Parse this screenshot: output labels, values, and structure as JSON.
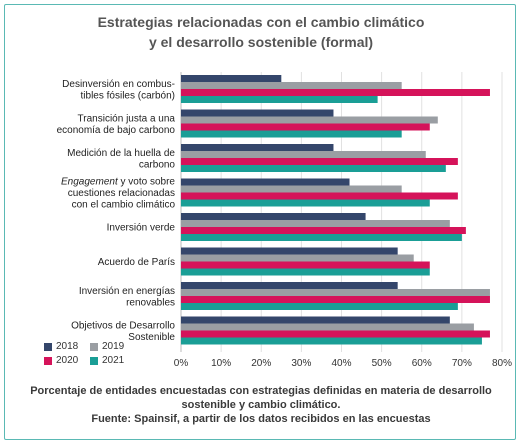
{
  "title_line1": "Estrategias relacionadas con el cambio climático",
  "title_line2": "y el desarrollo sostenible (formal)",
  "caption_line1": "Porcentaje de entidades encuestadas con estrategias definidas en materia de desarrollo",
  "caption_line2": "sostenible y cambio climático.",
  "caption_line3": "Fuente: Spainsif, a partir de los datos recibidos en las encuestas",
  "colors": {
    "2018": "#34466b",
    "2019": "#9a9ea3",
    "2020": "#d5135a",
    "2021": "#1a9e96",
    "frame": "#5ab9b4"
  },
  "chart_data": {
    "type": "bar",
    "orientation": "horizontal",
    "categories": [
      [
        "Desinversión en combus-",
        "tibles fósiles (carbón)"
      ],
      [
        "Transición justa a una",
        "economía de bajo carbono"
      ],
      [
        "Medición de la huella de",
        "carbono"
      ],
      [
        "Engagement y voto sobre",
        "cuestiones relacionadas",
        "con el cambio climático"
      ],
      [
        "Inversión verde"
      ],
      [
        "Acuerdo de París"
      ],
      [
        "Inversión en energías",
        "renovables"
      ],
      [
        "Objetivos de Desarrollo",
        "Sostenible"
      ]
    ],
    "series": [
      {
        "name": "2018",
        "values": [
          25,
          38,
          38,
          42,
          46,
          54,
          54,
          67
        ]
      },
      {
        "name": "2019",
        "values": [
          55,
          64,
          61,
          55,
          67,
          58,
          77,
          73
        ]
      },
      {
        "name": "2020",
        "values": [
          77,
          62,
          69,
          69,
          71,
          62,
          77,
          77
        ]
      },
      {
        "name": "2021",
        "values": [
          49,
          55,
          66,
          62,
          70,
          62,
          69,
          75
        ]
      }
    ],
    "xlim": [
      0,
      80
    ],
    "xticks": [
      "0%",
      "10%",
      "20%",
      "30%",
      "40%",
      "50%",
      "60%",
      "70%",
      "80%"
    ],
    "grid": "vertical",
    "legend": [
      "2018",
      "2019",
      "2020",
      "2021"
    ],
    "legend_position": "bottom-left"
  }
}
